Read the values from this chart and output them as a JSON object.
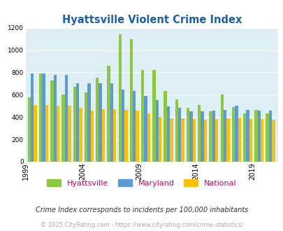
{
  "title": "Hyattsville Violent Crime Index",
  "years": [
    1999,
    2000,
    2001,
    2002,
    2003,
    2004,
    2005,
    2006,
    2007,
    2008,
    2009,
    2010,
    2011,
    2012,
    2013,
    2014,
    2015,
    2016,
    2017,
    2018,
    2019,
    2020
  ],
  "hyattsville": [
    575,
    790,
    730,
    600,
    670,
    620,
    750,
    860,
    1140,
    1100,
    820,
    820,
    635,
    560,
    480,
    510,
    450,
    600,
    490,
    430,
    465,
    430
  ],
  "maryland": [
    790,
    790,
    780,
    780,
    700,
    700,
    700,
    700,
    645,
    635,
    590,
    550,
    495,
    480,
    450,
    450,
    455,
    465,
    500,
    465,
    455,
    455
  ],
  "national": [
    510,
    510,
    500,
    500,
    480,
    460,
    470,
    470,
    465,
    455,
    430,
    400,
    390,
    390,
    380,
    375,
    380,
    390,
    395,
    385,
    380,
    375
  ],
  "hyattsville_color": "#8dc63f",
  "maryland_color": "#5b9bd5",
  "national_color": "#ffc000",
  "bg_color": "#ddeef4",
  "title_color": "#1f5fa6",
  "ylim": [
    0,
    1200
  ],
  "yticks": [
    0,
    200,
    400,
    600,
    800,
    1000,
    1200
  ],
  "xlabel_ticks": [
    1999,
    2004,
    2009,
    2014,
    2019
  ],
  "footnote1": "Crime Index corresponds to incidents per 100,000 inhabitants",
  "footnote2": "© 2025 CityRating.com - https://www.cityrating.com/crime-statistics/",
  "footnote1_color": "#333333",
  "footnote2_color": "#aaaaaa",
  "legend_label_hyattsville": "Hyattsville",
  "legend_label_maryland": "Maryland",
  "legend_label_national": "National",
  "legend_label_color": "#cc0066"
}
